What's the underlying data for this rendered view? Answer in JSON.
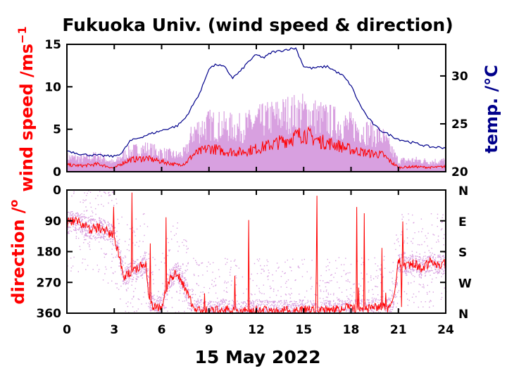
{
  "colors": {
    "speed": "#ff0000",
    "gust": "#d8a0e0",
    "temp": "#00008b",
    "axis": "#000000"
  },
  "chart_data": [
    {
      "type": "line",
      "title": "Fukuoka Univ. (wind speed & direction)",
      "ylabel_left": "wind speed /ms",
      "ylabel_left_sup": "−1",
      "ylabel_right": "temp. /°C",
      "xlim": [
        0,
        24
      ],
      "ylim_left": [
        0,
        15
      ],
      "ylim_right": [
        20,
        33.3
      ],
      "x_ticks": [
        "0",
        "3",
        "6",
        "9",
        "12",
        "15",
        "18",
        "21",
        "24"
      ],
      "y_ticks_left": [
        "0",
        "5",
        "10",
        "15"
      ],
      "y_ticks_right": [
        "20",
        "25",
        "30"
      ],
      "series": [
        {
          "kind": "temperature",
          "axis": "right",
          "x": [
            0,
            1,
            2,
            3,
            3.5,
            4,
            5,
            6,
            7,
            7.5,
            8,
            8.5,
            9,
            9.5,
            10,
            10.5,
            11,
            11.5,
            12,
            12.5,
            13,
            13.5,
            14,
            14.5,
            15,
            15.5,
            16,
            16.5,
            17,
            17.5,
            18,
            18.5,
            19,
            19.5,
            20,
            20.5,
            21,
            22,
            23,
            24
          ],
          "values": [
            22.2,
            21.8,
            21.7,
            21.6,
            22.0,
            23.2,
            23.8,
            24.3,
            24.8,
            25.6,
            27.0,
            28.5,
            30.8,
            31.2,
            30.9,
            29.8,
            30.5,
            31.5,
            32.2,
            31.9,
            32.5,
            32.6,
            32.8,
            32.9,
            31.0,
            30.8,
            30.9,
            31.0,
            30.5,
            30.0,
            29.0,
            27.2,
            25.8,
            24.8,
            24.2,
            23.8,
            23.4,
            23.0,
            22.6,
            22.5
          ]
        },
        {
          "kind": "mean wind speed",
          "axis": "left",
          "x": [
            0,
            1,
            2,
            3,
            3.5,
            4,
            5,
            6,
            7,
            7.5,
            8,
            9,
            10,
            11,
            12,
            13,
            14,
            15,
            16,
            17,
            18,
            19,
            20,
            20.5,
            21,
            22,
            23,
            24
          ],
          "values": [
            0.8,
            0.7,
            0.9,
            0.4,
            1.0,
            1.4,
            1.6,
            1.2,
            0.8,
            1.0,
            2.0,
            2.8,
            2.4,
            2.3,
            2.7,
            3.2,
            3.8,
            4.5,
            3.6,
            3.2,
            2.6,
            2.2,
            2.0,
            1.2,
            0.5,
            0.6,
            0.5,
            0.6
          ]
        },
        {
          "kind": "gust envelope",
          "axis": "left",
          "x": [
            0,
            1,
            2,
            3,
            3.5,
            4,
            5,
            6,
            7,
            7.5,
            8,
            9,
            10,
            11,
            12,
            13,
            14,
            15,
            16,
            17,
            18,
            19,
            20,
            20.5,
            21,
            22,
            23,
            24
          ],
          "values": [
            2.0,
            1.8,
            2.2,
            1.2,
            2.2,
            2.8,
            3.2,
            2.6,
            2.2,
            2.6,
            5.5,
            6.5,
            6.2,
            6.0,
            6.8,
            7.5,
            8.0,
            8.2,
            7.5,
            6.8,
            6.2,
            5.5,
            4.8,
            3.2,
            1.5,
            1.6,
            1.4,
            1.5
          ]
        }
      ]
    },
    {
      "type": "scatter",
      "ylabel": "direction /",
      "ylabel_sup": "o",
      "xlabel": "15 May 2022",
      "xlim": [
        0,
        24
      ],
      "ylim": [
        360,
        0
      ],
      "x_ticks": [
        "0",
        "3",
        "6",
        "9",
        "12",
        "15",
        "18",
        "21",
        "24"
      ],
      "y_ticks_left": [
        "0",
        "90",
        "180",
        "270",
        "360"
      ],
      "y_ticks_right": [
        "N",
        "E",
        "S",
        "W",
        "N"
      ],
      "series": [
        {
          "kind": "mean direction",
          "x": [
            0,
            0.5,
            1,
            1.5,
            2,
            2.5,
            3,
            3.3,
            3.6,
            4,
            4.5,
            5,
            5.2,
            5.5,
            6,
            6.5,
            7,
            7.5,
            8,
            9,
            10,
            11,
            12,
            13,
            14,
            15,
            16,
            17,
            18,
            19,
            20,
            20.5,
            20.8,
            21,
            21.5,
            22,
            22.5,
            23,
            23.5,
            24
          ],
          "values": [
            95,
            90,
            100,
            115,
            110,
            120,
            135,
            190,
            260,
            240,
            230,
            210,
            320,
            345,
            340,
            260,
            240,
            290,
            345,
            355,
            350,
            355,
            350,
            355,
            352,
            350,
            355,
            348,
            345,
            350,
            340,
            345,
            280,
            210,
            220,
            215,
            230,
            210,
            220,
            215
          ]
        },
        {
          "kind": "sample scatter",
          "bands": "dense",
          "note": ""
        }
      ]
    }
  ]
}
